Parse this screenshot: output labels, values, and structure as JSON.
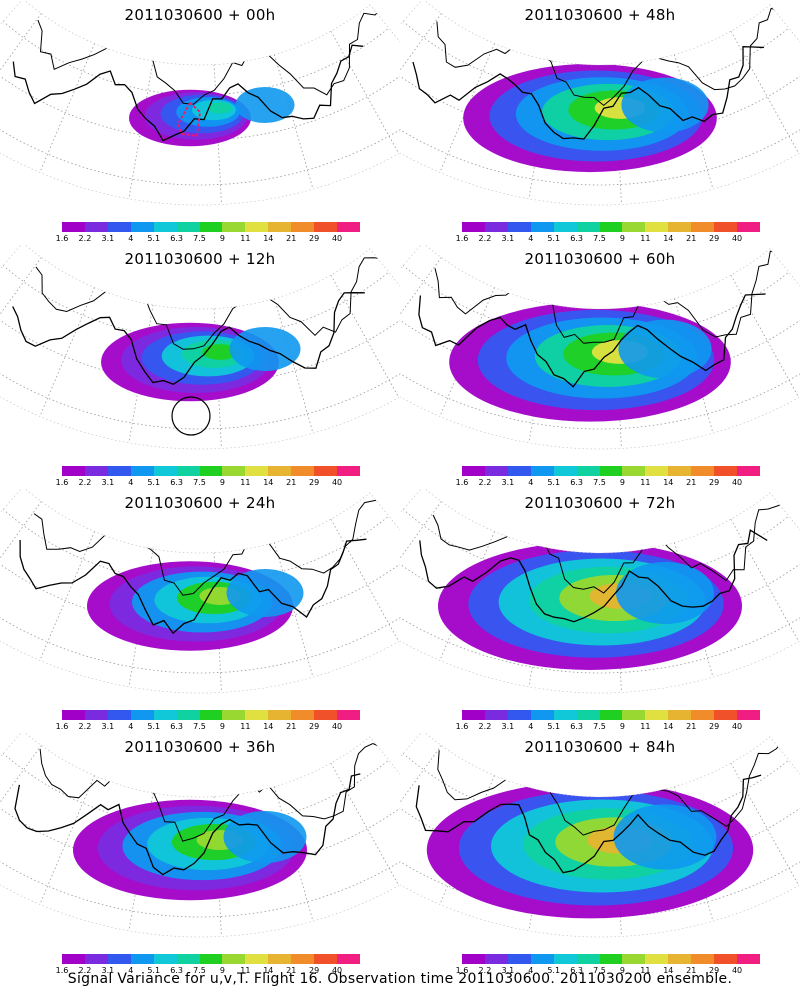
{
  "figure": {
    "footer": "Signal Variance for u,v,T. Flight 16. Observation time 2011030600. 2011030200 ensemble."
  },
  "colorbar": {
    "labels": [
      "1.6",
      "2.2",
      "3.1",
      "4",
      "5.1",
      "6.3",
      "7.5",
      "9",
      "11",
      "14",
      "21",
      "29",
      "40"
    ],
    "colors": [
      "#a000c8",
      "#7a2be0",
      "#3358f0",
      "#1098f0",
      "#10c8d8",
      "#10d2a0",
      "#20d020",
      "#98d830",
      "#e0e040",
      "#e6b430",
      "#f08c2a",
      "#f0502a",
      "#f01e82"
    ]
  },
  "panels": [
    {
      "title": "2011030600 + 00h",
      "lead": "00h",
      "coverage": 0.15,
      "circle": false,
      "diamond": true
    },
    {
      "title": "2011030600 + 48h",
      "lead": "48h",
      "coverage": 0.62,
      "circle": false,
      "diamond": false
    },
    {
      "title": "2011030600 + 12h",
      "lead": "12h",
      "coverage": 0.35,
      "circle": true,
      "diamond": false
    },
    {
      "title": "2011030600 + 60h",
      "lead": "60h",
      "coverage": 0.72,
      "circle": false,
      "diamond": false
    },
    {
      "title": "2011030600 + 24h",
      "lead": "24h",
      "coverage": 0.45,
      "circle": false,
      "diamond": false
    },
    {
      "title": "2011030600 + 72h",
      "lead": "72h",
      "coverage": 0.8,
      "circle": false,
      "diamond": false
    },
    {
      "title": "2011030600 + 36h",
      "lead": "36h",
      "coverage": 0.55,
      "circle": false,
      "diamond": false
    },
    {
      "title": "2011030600 + 84h",
      "lead": "84h",
      "coverage": 0.88,
      "circle": false,
      "diamond": false
    }
  ]
}
